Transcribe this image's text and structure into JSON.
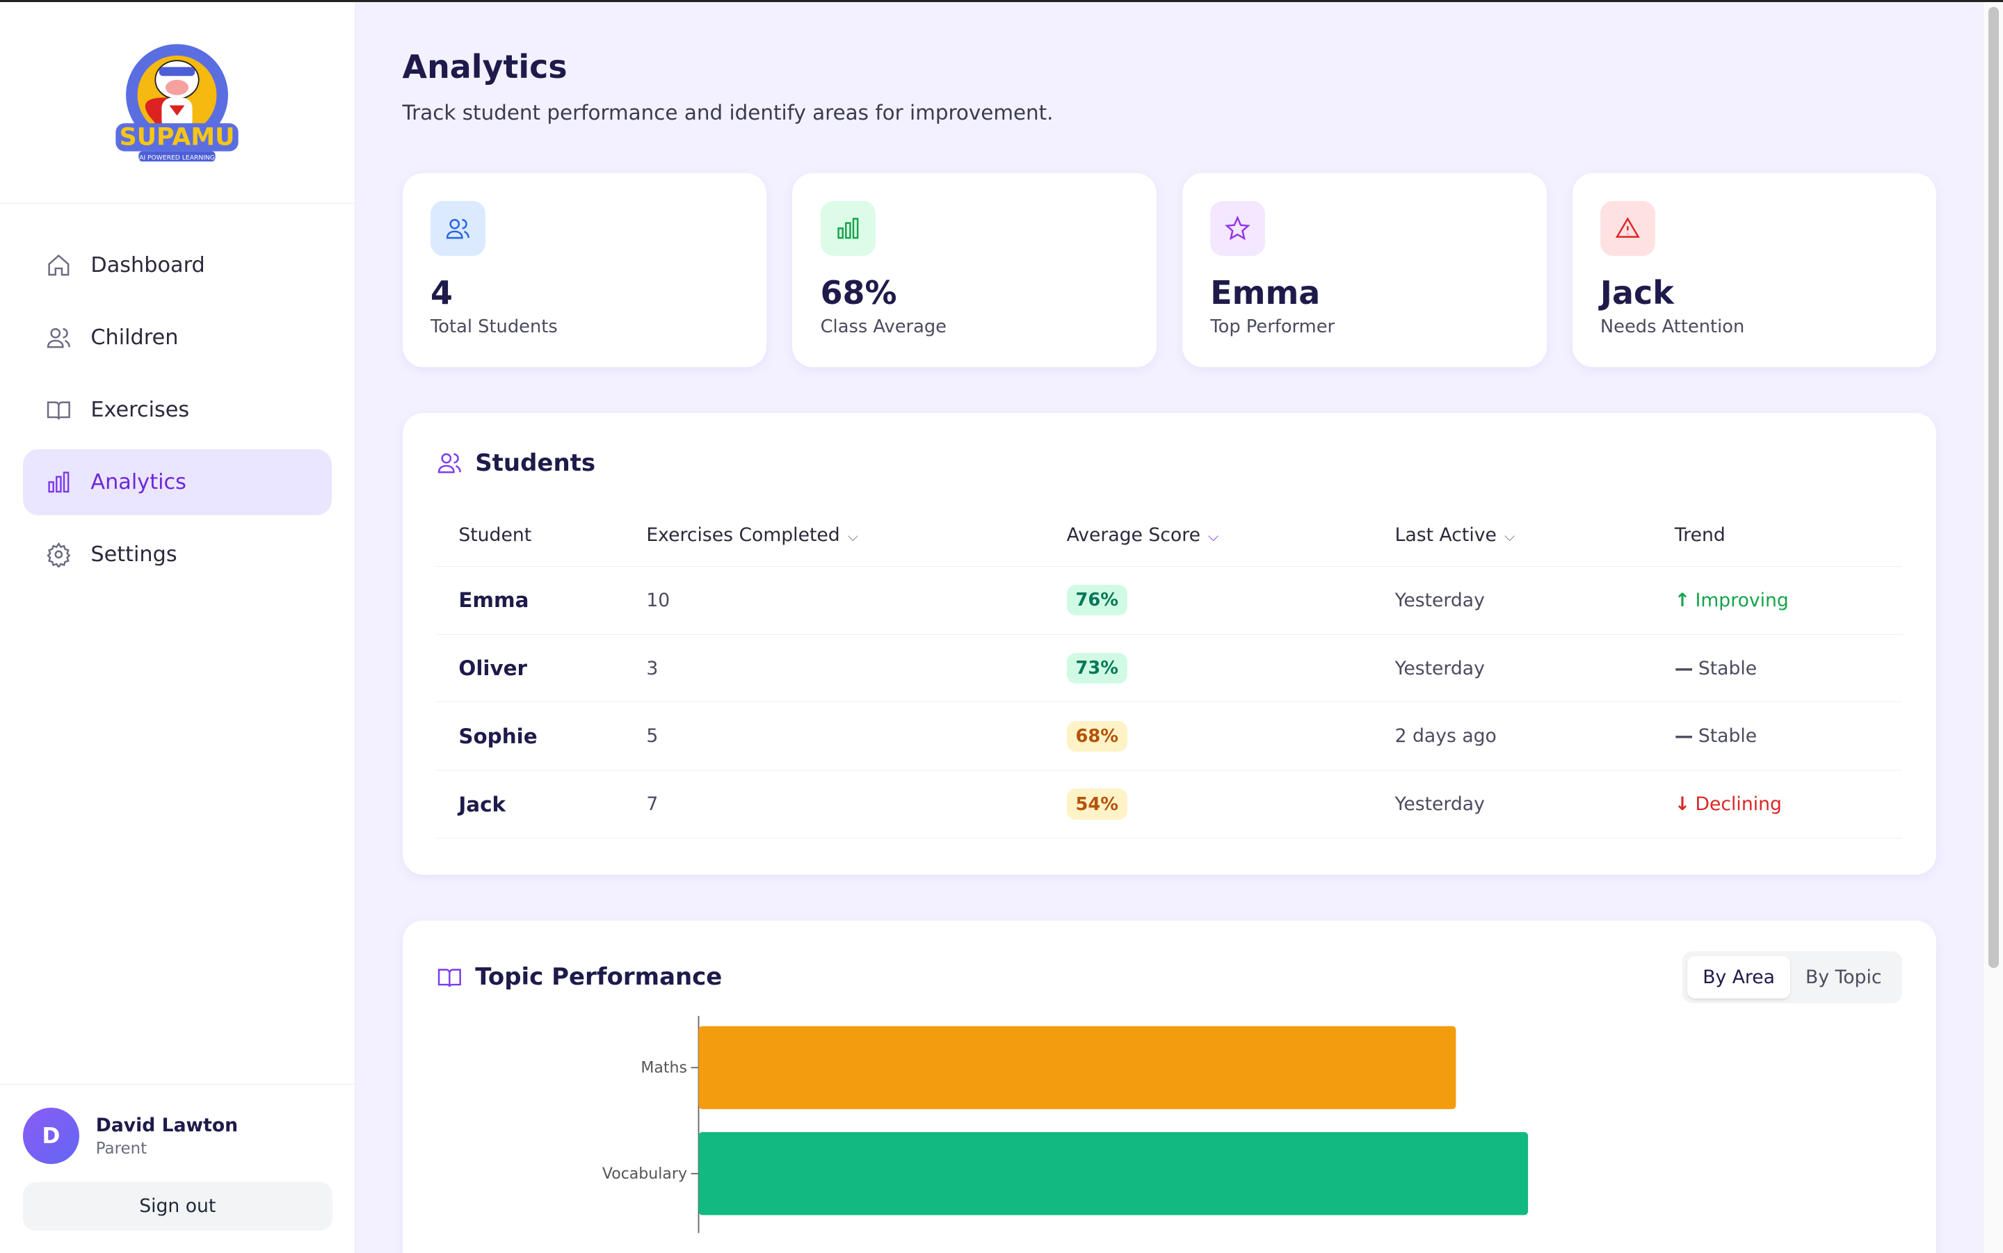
{
  "brand": {
    "name": "SUPAMU",
    "tagline": "AI POWERED LEARNING"
  },
  "nav": [
    {
      "label": "Dashboard",
      "icon": "home-icon"
    },
    {
      "label": "Children",
      "icon": "users-icon"
    },
    {
      "label": "Exercises",
      "icon": "book-icon"
    },
    {
      "label": "Analytics",
      "icon": "bar-chart-icon",
      "active": true
    },
    {
      "label": "Settings",
      "icon": "gear-icon"
    }
  ],
  "user": {
    "initial": "D",
    "name": "David Lawton",
    "role": "Parent",
    "signout": "Sign out"
  },
  "header": {
    "title": "Analytics",
    "subtitle": "Track student performance and identify areas for improvement."
  },
  "stats": [
    {
      "value": "4",
      "label": "Total Students",
      "icon": "users-icon",
      "bg": "#dbeafe",
      "color": "#2563eb"
    },
    {
      "value": "68%",
      "label": "Class Average",
      "icon": "bar-chart-icon",
      "bg": "#dcfce7",
      "color": "#16a34a"
    },
    {
      "value": "Emma",
      "label": "Top Performer",
      "icon": "star-icon",
      "bg": "#f3e8ff",
      "color": "#9333ea"
    },
    {
      "value": "Jack",
      "label": "Needs Attention",
      "icon": "warning-icon",
      "bg": "#fee2e2",
      "color": "#dc2626"
    }
  ],
  "students": {
    "title": "Students",
    "columns": [
      "Student",
      "Exercises Completed",
      "Average Score",
      "Last Active",
      "Trend"
    ],
    "rows": [
      {
        "name": "Emma",
        "exercises": "10",
        "score": "76%",
        "last": "Yesterday",
        "trend": "Improving",
        "trend_icon": "↑",
        "tone": "good"
      },
      {
        "name": "Oliver",
        "exercises": "3",
        "score": "73%",
        "last": "Yesterday",
        "trend": "Stable",
        "trend_icon": "—",
        "tone": "good"
      },
      {
        "name": "Sophie",
        "exercises": "5",
        "score": "68%",
        "last": "2 days ago",
        "trend": "Stable",
        "trend_icon": "—",
        "tone": "mid"
      },
      {
        "name": "Jack",
        "exercises": "7",
        "score": "54%",
        "last": "Yesterday",
        "trend": "Declining",
        "trend_icon": "↓",
        "tone": "mid"
      }
    ]
  },
  "topic": {
    "title": "Topic Performance",
    "toggle": [
      "By Area",
      "By Topic"
    ]
  },
  "chart_data": {
    "type": "bar",
    "orientation": "horizontal",
    "categories": [
      "Maths",
      "Vocabulary"
    ],
    "values": [
      63,
      69
    ],
    "colors": [
      "#f39c0e",
      "#12b981"
    ],
    "xlim": [
      0,
      100
    ],
    "title": "Topic Performance"
  }
}
